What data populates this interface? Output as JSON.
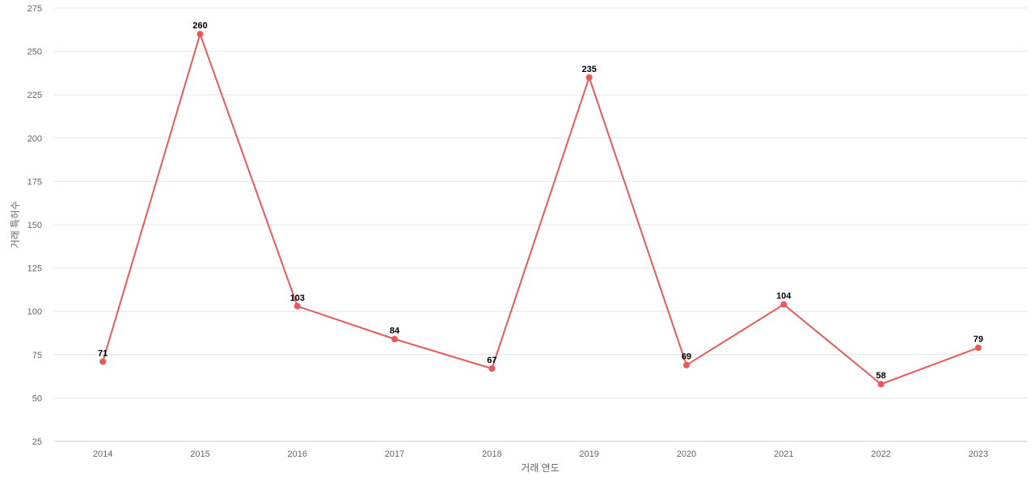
{
  "chart_data": {
    "type": "line",
    "title": "",
    "xlabel": "거래 연도",
    "ylabel": "거래 특허수",
    "categories": [
      "2014",
      "2015",
      "2016",
      "2017",
      "2018",
      "2019",
      "2020",
      "2021",
      "2022",
      "2023"
    ],
    "series": [
      {
        "name": "",
        "values": [
          71,
          260,
          103,
          84,
          67,
          235,
          69,
          104,
          58,
          79
        ]
      }
    ],
    "ylim": [
      25,
      275
    ],
    "yticks": [
      25,
      50,
      75,
      100,
      125,
      150,
      175,
      200,
      225,
      250,
      275
    ],
    "grid": true,
    "legend": "none",
    "data_labels": true,
    "colors": {
      "line": "#e85a5a",
      "point": "#e85a5a"
    }
  }
}
